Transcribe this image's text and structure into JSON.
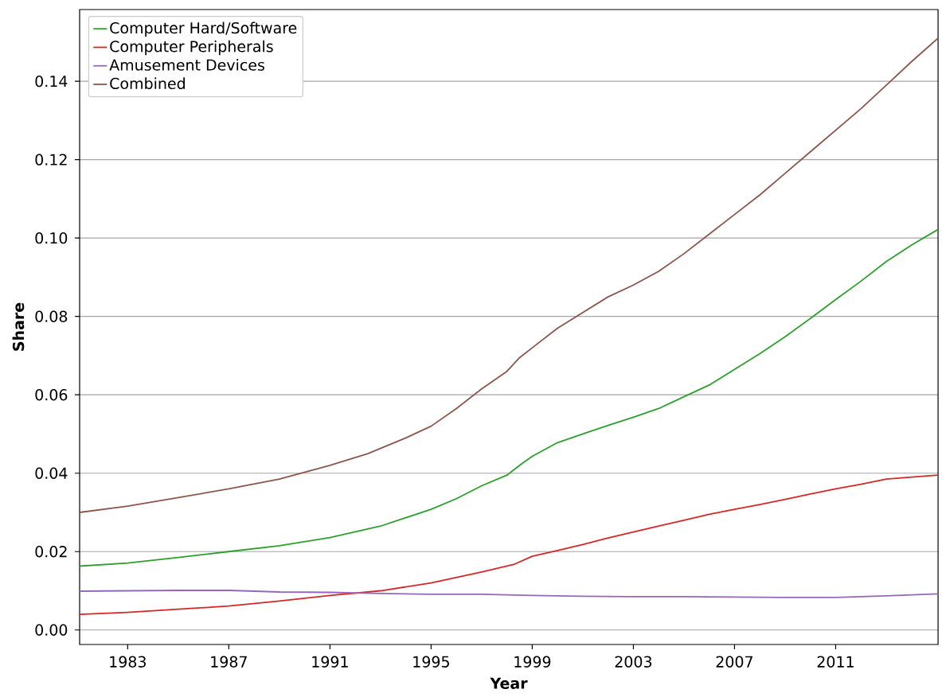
{
  "chart_data": {
    "type": "line",
    "xlabel": "Year",
    "ylabel": "Share",
    "xlim": [
      1981.1,
      2015.05
    ],
    "ylim": [
      -0.0037,
      0.1583
    ],
    "xticks": [
      1983,
      1987,
      1991,
      1995,
      1999,
      2003,
      2007,
      2011
    ],
    "yticks": [
      {
        "value": 0,
        "label": "0.00"
      },
      {
        "value": 0.02,
        "label": "0.02"
      },
      {
        "value": 0.04,
        "label": "0.04"
      },
      {
        "value": 0.06,
        "label": "0.06"
      },
      {
        "value": 0.08,
        "label": "0.08"
      },
      {
        "value": 0.1,
        "label": "0.10"
      },
      {
        "value": 0.12,
        "label": "0.12"
      },
      {
        "value": 0.14,
        "label": "0.14"
      }
    ],
    "grid": "y",
    "legend": "top left",
    "marker": "none",
    "line_style": "solid",
    "series": [
      {
        "name": "Computer Hard/Software",
        "color": "#2ca02c",
        "x": [
          1981.1,
          1983,
          1985,
          1987,
          1989,
          1991,
          1993,
          1995,
          1996,
          1997,
          1998,
          1998.3,
          1998.6,
          1999,
          2000,
          2001,
          2002,
          2003,
          2004,
          2005,
          2006,
          2007,
          2008,
          2009,
          2010,
          2011,
          2012,
          2013,
          2014,
          2015.05
        ],
        "values": [
          0.0163,
          0.0171,
          0.0185,
          0.02,
          0.0215,
          0.0236,
          0.0265,
          0.0308,
          0.0335,
          0.0368,
          0.0395,
          0.041,
          0.0425,
          0.0443,
          0.0478,
          0.05,
          0.0522,
          0.0543,
          0.0565,
          0.0595,
          0.0625,
          0.0665,
          0.0705,
          0.0748,
          0.0795,
          0.0843,
          0.089,
          0.094,
          0.0982,
          0.1022
        ]
      },
      {
        "name": "Computer Peripherals",
        "color": "#d62728",
        "x": [
          1981.1,
          1983,
          1985,
          1987,
          1989,
          1991,
          1993,
          1995,
          1997,
          1998.3,
          1999,
          2000,
          2001,
          2002,
          2003,
          2004,
          2005,
          2006,
          2007,
          2008,
          2009,
          2010,
          2011,
          2012,
          2013,
          2014,
          2015.05
        ],
        "values": [
          0.004,
          0.0045,
          0.0053,
          0.0061,
          0.0074,
          0.0088,
          0.01,
          0.012,
          0.0148,
          0.0168,
          0.0188,
          0.0203,
          0.0218,
          0.0235,
          0.025,
          0.0265,
          0.028,
          0.0295,
          0.0308,
          0.032,
          0.0333,
          0.0347,
          0.036,
          0.0372,
          0.0385,
          0.039,
          0.0395
        ]
      },
      {
        "name": "Amusement Devices",
        "color": "#9467bd",
        "x": [
          1981.1,
          1985,
          1987,
          1989,
          1991,
          1993,
          1995,
          1997,
          1999,
          2001,
          2003,
          2005,
          2007,
          2009,
          2011,
          2013,
          2015.05
        ],
        "values": [
          0.0099,
          0.0101,
          0.0101,
          0.0097,
          0.0096,
          0.0093,
          0.0091,
          0.0091,
          0.0088,
          0.0086,
          0.0085,
          0.0085,
          0.0084,
          0.0083,
          0.0083,
          0.0087,
          0.0092
        ]
      },
      {
        "name": "Combined",
        "color": "#8c564b",
        "x": [
          1981.1,
          1983,
          1985,
          1987,
          1989,
          1991,
          1992.5,
          1994,
          1995,
          1996,
          1997,
          1998,
          1998.5,
          1999,
          2000,
          2001,
          2002,
          2003,
          2004,
          2005,
          2006,
          2007,
          2008,
          2009,
          2010,
          2011,
          2012,
          2013,
          2014,
          2015.05
        ],
        "values": [
          0.03,
          0.0316,
          0.0338,
          0.036,
          0.0385,
          0.042,
          0.045,
          0.049,
          0.052,
          0.0565,
          0.0615,
          0.066,
          0.0695,
          0.072,
          0.077,
          0.081,
          0.085,
          0.088,
          0.0915,
          0.096,
          0.101,
          0.106,
          0.111,
          0.1165,
          0.122,
          0.1275,
          0.133,
          0.139,
          0.145,
          0.151
        ]
      }
    ]
  }
}
